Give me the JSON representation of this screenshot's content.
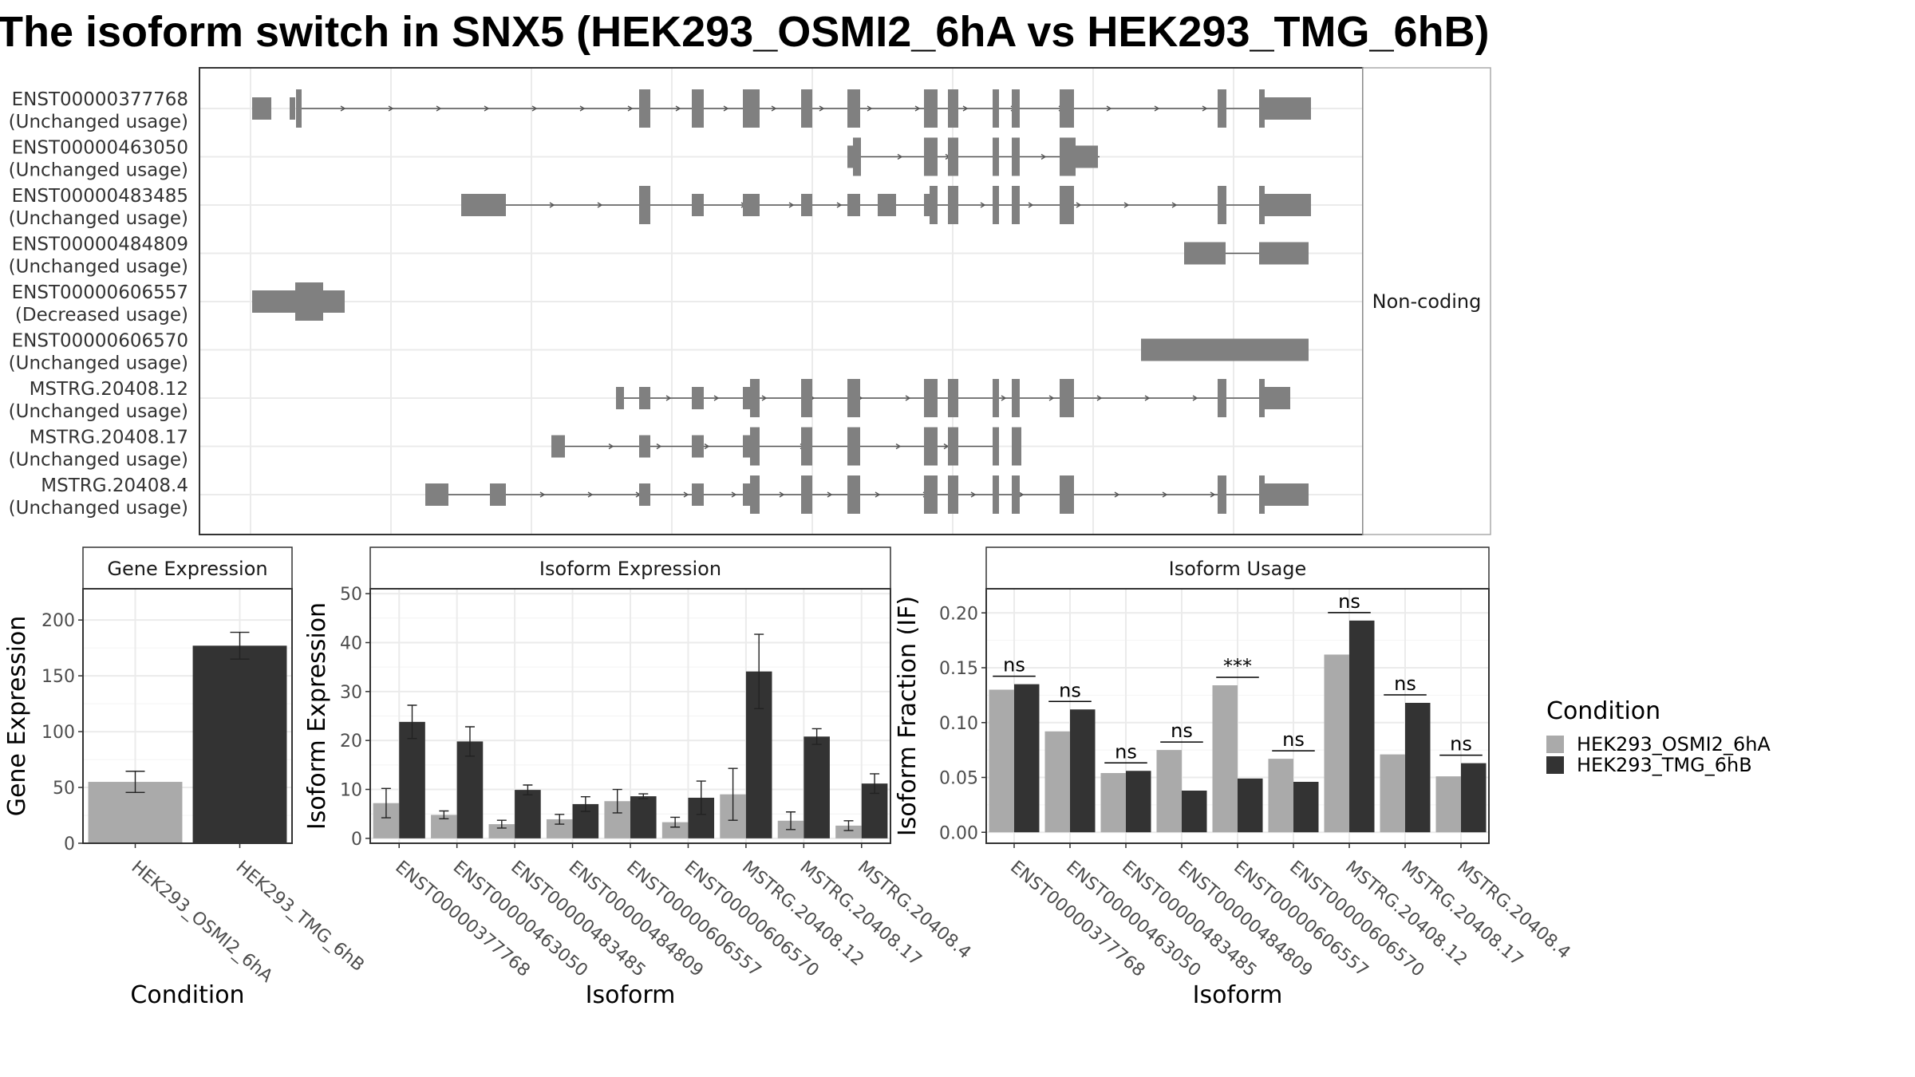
{
  "title": "The isoform switch in SNX5 (HEK293_OSMI2_6hA vs HEK293_TMG_6hB)",
  "colors": {
    "cond_a": "#aaaaaa",
    "cond_b": "#333333",
    "exon": "#808080",
    "panel_border": "#333333",
    "grid": "#ebebeb",
    "strip_bg": "#ffffff"
  },
  "chart_data": [
    {
      "type": "other",
      "panel": "structure",
      "facet_label": "Non-coding",
      "isoforms": [
        {
          "id": "ENST00000377768",
          "usage": "(Unchanged usage)"
        },
        {
          "id": "ENST00000463050",
          "usage": "(Unchanged usage)"
        },
        {
          "id": "ENST00000483485",
          "usage": "(Unchanged usage)"
        },
        {
          "id": "ENST00000484809",
          "usage": "(Unchanged usage)"
        },
        {
          "id": "ENST00000606557",
          "usage": "(Decreased usage)"
        },
        {
          "id": "ENST00000606570",
          "usage": "(Unchanged usage)"
        },
        {
          "id": "MSTRG.20408.12",
          "usage": "(Unchanged usage)"
        },
        {
          "id": "MSTRG.20408.17",
          "usage": "(Unchanged usage)"
        },
        {
          "id": "MSTRG.20408.4",
          "usage": "(Unchanged usage)"
        }
      ]
    },
    {
      "type": "bar",
      "panel": "gene_expression",
      "title": "Gene Expression",
      "xlabel": "Condition",
      "ylabel": "Gene Expression",
      "ylim": [
        0,
        228
      ],
      "yticks": [
        0,
        50,
        100,
        150,
        200
      ],
      "categories": [
        "HEK293_OSMI2_6hA",
        "HEK293_TMG_6hB"
      ],
      "values": [
        55,
        177
      ],
      "errors": [
        9.5,
        12
      ],
      "grid": true
    },
    {
      "type": "bar",
      "panel": "isoform_expression",
      "title": "Isoform Expression",
      "xlabel": "Isoform",
      "ylabel": "Isoform Expression",
      "ylim": [
        -1,
        51
      ],
      "yticks": [
        0,
        10,
        20,
        30,
        40,
        50
      ],
      "categories": [
        "ENST00000377768",
        "ENST00000463050",
        "ENST00000483485",
        "ENST00000484809",
        "ENST00000606557",
        "ENST00000606570",
        "MSTRG.20408.12",
        "MSTRG.20408.17",
        "MSTRG.20408.4"
      ],
      "series": [
        {
          "name": "HEK293_OSMI2_6hA",
          "values": [
            7.2,
            4.8,
            2.9,
            3.9,
            7.6,
            3.3,
            9.0,
            3.6,
            2.6
          ],
          "errors": [
            3.0,
            0.8,
            0.8,
            1.0,
            2.4,
            1.0,
            5.3,
            1.8,
            1.0
          ]
        },
        {
          "name": "HEK293_TMG_6hB",
          "values": [
            23.8,
            19.8,
            9.9,
            7.0,
            8.6,
            8.3,
            34.1,
            20.8,
            11.2
          ],
          "errors": [
            3.4,
            3.0,
            1.0,
            1.5,
            0.5,
            3.4,
            7.6,
            1.6,
            2.0
          ]
        }
      ],
      "grid": true
    },
    {
      "type": "bar",
      "panel": "isoform_usage",
      "title": "Isoform Usage",
      "xlabel": "Isoform",
      "ylabel": "Isoform Fraction (IF)",
      "ylim": [
        -0.01,
        0.222
      ],
      "yticks": [
        "0.00",
        "0.05",
        "0.10",
        "0.15",
        "0.20"
      ],
      "categories": [
        "ENST00000377768",
        "ENST00000463050",
        "ENST00000483485",
        "ENST00000484809",
        "ENST00000606557",
        "ENST00000606570",
        "MSTRG.20408.12",
        "MSTRG.20408.17",
        "MSTRG.20408.4"
      ],
      "series": [
        {
          "name": "HEK293_OSMI2_6hA",
          "values": [
            0.13,
            0.092,
            0.054,
            0.075,
            0.134,
            0.067,
            0.162,
            0.071,
            0.051
          ]
        },
        {
          "name": "HEK293_TMG_6hB",
          "values": [
            0.135,
            0.112,
            0.056,
            0.038,
            0.049,
            0.046,
            0.193,
            0.118,
            0.063
          ]
        }
      ],
      "significance": [
        "ns",
        "ns",
        "ns",
        "ns",
        "***",
        "ns",
        "ns",
        "ns",
        "ns"
      ],
      "grid": true
    }
  ],
  "legend": {
    "title": "Condition",
    "position": "right",
    "items": [
      "HEK293_OSMI2_6hA",
      "HEK293_TMG_6hB"
    ]
  }
}
